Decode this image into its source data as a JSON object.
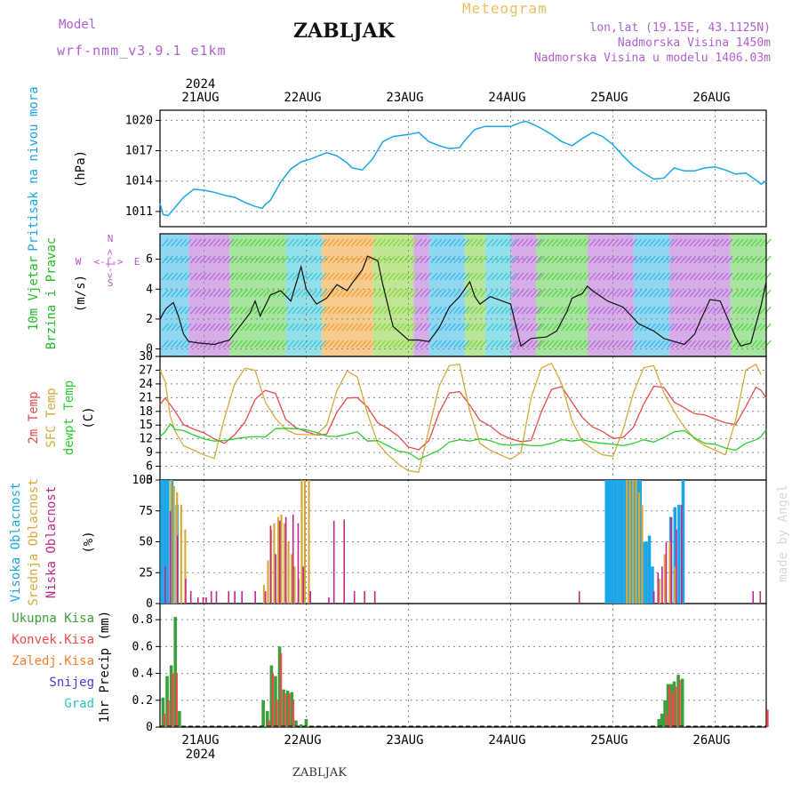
{
  "header": {
    "title": "ZABLJAK",
    "model_label": "Model",
    "model_name": "wrf-nmm_v3.9.1 e1km",
    "product": "Meteogram",
    "coords": "lon,lat (19.15E, 43.1125N)",
    "elevation": "Nadmorska Visina 1450m",
    "model_elevation": "Nadmorska Visina u modelu 1406.03m",
    "footer_station": "ZABLJAK",
    "watermark": "made by Angel"
  },
  "colors": {
    "pressure": "#1aa6e6",
    "wind_label": "#22bb22",
    "compass": "#bb55cc",
    "temp2m": "#e84c4c",
    "sfc_temp": "#d4aa3a",
    "dewpoint": "#2ecc2e",
    "high_cloud": "#1aa6e6",
    "mid_cloud": "#d4aa3a",
    "low_cloud": "#c4258e",
    "total_precip": "#3aa03a",
    "convective": "#e84c4c",
    "freezing": "#f08030",
    "snow": "#4040e0",
    "hail": "#30c0c0",
    "header_model": "#b060d0",
    "header_meteogram": "#e8c060"
  },
  "chart_data": [
    {
      "type": "line",
      "name": "pressure",
      "ylabel": "Pritisak na nivou mora",
      "yunit": "(hPa)",
      "ylim": [
        1009.5,
        1021
      ],
      "yticks": [
        1011,
        1014,
        1017,
        1020
      ],
      "grid": true,
      "x_days": [
        20.57,
        20.6,
        20.65,
        20.7,
        20.8,
        20.9,
        21.0,
        21.1,
        21.2,
        21.3,
        21.4,
        21.5,
        21.57,
        21.6,
        21.65,
        21.75,
        21.85,
        21.95,
        22.05,
        22.15,
        22.2,
        22.3,
        22.4,
        22.45,
        22.55,
        22.65,
        22.75,
        22.85,
        23.0,
        23.1,
        23.2,
        23.3,
        23.4,
        23.5,
        23.55,
        23.65,
        23.75,
        23.85,
        24.0,
        24.1,
        24.15,
        24.2,
        24.3,
        24.4,
        24.5,
        24.6,
        24.7,
        24.8,
        24.9,
        25.0,
        25.1,
        25.2,
        25.3,
        25.4,
        25.5,
        25.6,
        25.7,
        25.8,
        25.9,
        26.0,
        26.1,
        26.2,
        26.3,
        26.4,
        26.45,
        26.5
      ],
      "values": [
        1011.8,
        1010.7,
        1010.6,
        1011.2,
        1012.4,
        1013.2,
        1013.1,
        1012.9,
        1012.6,
        1012.4,
        1011.9,
        1011.5,
        1011.3,
        1011.7,
        1012.1,
        1013.9,
        1015.2,
        1015.9,
        1016.2,
        1016.6,
        1016.8,
        1016.5,
        1015.8,
        1015.3,
        1015.1,
        1016.2,
        1017.9,
        1018.4,
        1018.6,
        1018.8,
        1017.9,
        1017.5,
        1017.2,
        1017.3,
        1018.0,
        1019.1,
        1019.4,
        1019.4,
        1019.4,
        1019.8,
        1019.9,
        1019.7,
        1019.2,
        1018.6,
        1017.9,
        1017.5,
        1018.2,
        1018.8,
        1018.4,
        1017.6,
        1016.5,
        1015.5,
        1014.8,
        1014.2,
        1014.3,
        1015.3,
        1015.0,
        1015.0,
        1015.3,
        1015.4,
        1015.1,
        1014.7,
        1014.8,
        1014.1,
        1013.7,
        1014.0
      ]
    },
    {
      "type": "line",
      "name": "wind",
      "ylabel": "10m Vjetar",
      "ylabel2": "Brzina i Pravac",
      "yunit": "(m/s)",
      "ylim": [
        -0.5,
        7.7
      ],
      "yticks": [
        0,
        2,
        4,
        6
      ],
      "compass": {
        "n": "N",
        "s": "S",
        "e": "E",
        "w": "W",
        "arrow_h": "<-|->",
        "arrow_v": "<-|->"
      },
      "grid": true,
      "x_days": [
        20.57,
        20.63,
        20.7,
        20.75,
        20.8,
        20.85,
        20.95,
        21.1,
        21.25,
        21.35,
        21.45,
        21.5,
        21.55,
        21.65,
        21.75,
        21.85,
        21.95,
        22.0,
        22.1,
        22.2,
        22.3,
        22.4,
        22.45,
        22.55,
        22.6,
        22.7,
        22.75,
        22.85,
        23.0,
        23.1,
        23.2,
        23.3,
        23.4,
        23.5,
        23.6,
        23.65,
        23.7,
        23.8,
        24.0,
        24.1,
        24.2,
        24.35,
        24.45,
        24.55,
        24.6,
        24.7,
        24.75,
        24.8,
        24.95,
        25.1,
        25.25,
        25.4,
        25.5,
        25.6,
        25.7,
        25.8,
        25.85,
        25.95,
        26.05,
        26.2,
        26.25,
        26.35,
        26.45,
        26.5
      ],
      "values": [
        2.0,
        2.7,
        3.1,
        2.2,
        1.0,
        0.5,
        0.4,
        0.3,
        0.6,
        1.5,
        2.4,
        3.2,
        2.2,
        3.6,
        3.9,
        3.2,
        5.5,
        4.0,
        3.0,
        3.4,
        4.3,
        3.9,
        4.4,
        5.3,
        6.2,
        5.9,
        4.3,
        1.5,
        0.6,
        0.6,
        0.5,
        1.4,
        2.8,
        3.5,
        4.5,
        3.5,
        3.0,
        3.5,
        3.0,
        0.2,
        0.7,
        0.8,
        1.2,
        2.5,
        3.4,
        3.7,
        4.2,
        3.9,
        3.2,
        2.8,
        1.7,
        1.2,
        0.7,
        0.5,
        0.3,
        1.0,
        1.8,
        3.3,
        3.2,
        0.8,
        0.2,
        0.4,
        2.9,
        4.5
      ]
    },
    {
      "type": "line",
      "name": "temperature",
      "ylabel": "2m Temp",
      "ylabel2": "SFC Temp",
      "ylabel3": "dewpt Temp",
      "yunit": "(C)",
      "ylim": [
        3,
        30
      ],
      "yticks": [
        3,
        6,
        9,
        12,
        15,
        18,
        21,
        24,
        27,
        30
      ],
      "grid": true,
      "series": [
        {
          "name": "2m Temp",
          "x_days": [
            20.57,
            20.62,
            20.67,
            20.72,
            20.8,
            20.9,
            21.0,
            21.1,
            21.2,
            21.3,
            21.4,
            21.5,
            21.6,
            21.7,
            21.8,
            21.9,
            22.0,
            22.1,
            22.2,
            22.3,
            22.4,
            22.5,
            22.6,
            22.7,
            22.8,
            22.9,
            23.0,
            23.1,
            23.2,
            23.3,
            23.4,
            23.5,
            23.6,
            23.7,
            23.8,
            23.9,
            24.0,
            24.1,
            24.2,
            24.3,
            24.4,
            24.5,
            24.6,
            24.7,
            24.8,
            24.9,
            25.0,
            25.1,
            25.2,
            25.3,
            25.4,
            25.5,
            25.6,
            25.7,
            25.8,
            25.9,
            26.0,
            26.1,
            26.2,
            26.3,
            26.4,
            26.45,
            26.5
          ],
          "values": [
            19.5,
            20.9,
            19.5,
            17.9,
            15.1,
            14.1,
            13.3,
            12.0,
            11.0,
            12.9,
            15.6,
            20.6,
            22.6,
            21.9,
            16.2,
            14.4,
            13.6,
            12.8,
            13.0,
            17.8,
            20.9,
            21.0,
            18.9,
            15.5,
            14.2,
            12.6,
            10.2,
            9.6,
            11.6,
            17.7,
            22.0,
            22.3,
            19.4,
            16.0,
            14.8,
            13.0,
            12.0,
            11.4,
            11.6,
            17.9,
            22.8,
            23.4,
            20.0,
            16.7,
            14.6,
            13.6,
            12.1,
            12.3,
            14.5,
            19.5,
            23.5,
            23.2,
            20.0,
            18.8,
            17.5,
            17.2,
            16.3,
            15.5,
            15.1,
            19.0,
            23.3,
            22.6,
            20.9
          ]
        },
        {
          "name": "SFC Temp",
          "x_days": [
            20.57,
            20.62,
            20.67,
            20.72,
            20.8,
            20.9,
            21.0,
            21.1,
            21.2,
            21.3,
            21.4,
            21.5,
            21.6,
            21.7,
            21.8,
            21.9,
            22.0,
            22.1,
            22.2,
            22.3,
            22.4,
            22.5,
            22.6,
            22.7,
            22.8,
            22.9,
            23.0,
            23.1,
            23.2,
            23.3,
            23.4,
            23.5,
            23.6,
            23.7,
            23.8,
            23.9,
            24.0,
            24.1,
            24.2,
            24.3,
            24.4,
            24.5,
            24.6,
            24.7,
            24.8,
            24.9,
            25.0,
            25.1,
            25.2,
            25.3,
            25.4,
            25.5,
            25.6,
            25.7,
            25.8,
            25.9,
            26.0,
            26.1,
            26.2,
            26.3,
            26.4,
            26.45,
            26.5
          ],
          "values": [
            27.0,
            24.5,
            17.0,
            13.5,
            10.5,
            9.5,
            8.5,
            7.7,
            16.5,
            24.0,
            27.4,
            27.0,
            20.0,
            16.5,
            14.0,
            13.0,
            12.9,
            12.9,
            15.0,
            22.5,
            26.8,
            25.5,
            17.5,
            11.0,
            8.5,
            6.5,
            5.0,
            4.7,
            14.0,
            23.5,
            28.0,
            28.3,
            18.0,
            11.0,
            9.5,
            8.5,
            7.5,
            9.0,
            21.0,
            27.5,
            28.5,
            24.0,
            16.0,
            11.5,
            9.8,
            8.5,
            8.2,
            14.0,
            22.0,
            27.5,
            28.0,
            22.0,
            18.0,
            14.5,
            12.0,
            10.5,
            9.5,
            8.5,
            16.0,
            27.0,
            28.3,
            26.0,
            0
          ]
        },
        {
          "name": "dewpt Temp",
          "x_days": [
            20.57,
            20.62,
            20.67,
            20.72,
            20.8,
            20.9,
            21.0,
            21.1,
            21.2,
            21.3,
            21.4,
            21.5,
            21.6,
            21.7,
            21.8,
            21.9,
            22.0,
            22.1,
            22.2,
            22.3,
            22.4,
            22.5,
            22.6,
            22.7,
            22.8,
            22.9,
            23.0,
            23.1,
            23.2,
            23.3,
            23.4,
            23.5,
            23.6,
            23.7,
            23.8,
            23.9,
            24.0,
            24.1,
            24.2,
            24.3,
            24.4,
            24.5,
            24.6,
            24.7,
            24.8,
            24.9,
            25.0,
            25.1,
            25.2,
            25.3,
            25.4,
            25.5,
            25.6,
            25.7,
            25.8,
            25.9,
            26.0,
            26.1,
            26.2,
            26.3,
            26.4,
            26.45,
            26.5
          ],
          "values": [
            12.5,
            13.5,
            15.3,
            14.0,
            13.8,
            12.8,
            12.0,
            11.5,
            11.6,
            12.0,
            12.3,
            12.5,
            12.4,
            14.2,
            14.3,
            14.2,
            14.0,
            13.4,
            12.6,
            12.5,
            13.0,
            13.5,
            11.5,
            11.6,
            10.5,
            9.3,
            9.0,
            7.5,
            8.5,
            9.5,
            11.3,
            11.8,
            11.5,
            12.0,
            11.6,
            10.8,
            10.6,
            10.8,
            10.5,
            10.5,
            11.0,
            11.8,
            11.5,
            11.8,
            11.3,
            11.0,
            10.8,
            10.5,
            11.0,
            11.8,
            11.3,
            12.3,
            13.5,
            13.8,
            12.2,
            11.0,
            10.8,
            10.0,
            9.5,
            11.0,
            11.8,
            12.5,
            14.0
          ]
        }
      ]
    },
    {
      "type": "bar",
      "name": "cloudiness",
      "ylabel": "Visoka Oblacnost",
      "ylabel2": "Srednja Oblacnost",
      "ylabel3": "Niska Oblacnost",
      "yunit": "(%)",
      "ylim": [
        0,
        100
      ],
      "yticks": [
        0,
        25,
        50,
        75,
        100
      ],
      "grid": true,
      "series": [
        {
          "name": "Visoka Oblacnost",
          "x_days": [
            20.6,
            20.63,
            20.66,
            20.7,
            20.75,
            24.95,
            24.98,
            25.01,
            25.04,
            25.07,
            25.1,
            25.13,
            25.16,
            25.19,
            25.22,
            25.25,
            25.28,
            25.31,
            25.34,
            25.37,
            25.4,
            25.58,
            25.62,
            25.66,
            25.7
          ],
          "values": [
            100,
            100,
            100,
            100,
            80,
            100,
            100,
            100,
            100,
            100,
            100,
            100,
            100,
            100,
            100,
            100,
            100,
            50,
            50,
            55,
            30,
            70,
            78,
            80,
            100
          ]
        },
        {
          "name": "Srednja Oblacnost",
          "x_days": [
            20.67,
            20.7,
            20.73,
            20.77,
            20.81,
            21.58,
            21.62,
            21.65,
            21.68,
            21.72,
            21.75,
            21.78,
            21.82,
            21.85,
            21.88,
            21.92,
            21.95,
            21.98,
            22.02,
            25.13,
            25.16,
            25.19,
            25.22,
            25.25,
            25.28,
            25.45,
            25.5,
            25.55,
            25.6
          ],
          "values": [
            100,
            95,
            90,
            80,
            60,
            15,
            35,
            60,
            65,
            70,
            72,
            65,
            50,
            40,
            30,
            20,
            100,
            100,
            100,
            100,
            100,
            100,
            100,
            90,
            80,
            20,
            40,
            50,
            30
          ]
        },
        {
          "name": "Niska Oblacnost",
          "x_days": [
            20.6,
            20.65,
            20.72,
            20.8,
            20.85,
            20.92,
            20.97,
            21.0,
            21.05,
            21.1,
            21.22,
            21.28,
            21.35,
            21.48,
            21.58,
            21.63,
            21.68,
            21.72,
            21.78,
            21.85,
            21.9,
            21.95,
            22.02,
            22.2,
            22.25,
            22.35,
            22.45,
            22.55,
            22.65,
            24.65,
            25.38,
            25.42,
            25.46,
            25.5,
            25.55,
            25.6,
            25.65,
            26.35,
            26.42
          ],
          "values": [
            30,
            75,
            55,
            20,
            10,
            5,
            5,
            5,
            10,
            10,
            10,
            10,
            10,
            10,
            10,
            63,
            40,
            67,
            70,
            72,
            65,
            30,
            10,
            5,
            67,
            68,
            10,
            10,
            10,
            10,
            10,
            25,
            30,
            50,
            70,
            60,
            80,
            10,
            10
          ]
        }
      ]
    },
    {
      "type": "bar",
      "name": "precipitation",
      "ylabel": "1hr Precip",
      "yunit": "(mm)",
      "ylim": [
        0,
        0.92
      ],
      "yticks": [
        0,
        0.2,
        0.4,
        0.6,
        0.8
      ],
      "grid": true,
      "legend": [
        "Ukupna Kisa",
        "Konvek.Kisa",
        "Zaledj.Kisa",
        "Snijeg",
        "Grad"
      ],
      "series": [
        {
          "name": "Ukupna Kisa",
          "x_days": [
            20.6,
            20.64,
            20.68,
            20.72,
            20.76,
            21.58,
            21.62,
            21.66,
            21.7,
            21.74,
            21.78,
            21.82,
            21.86,
            21.9,
            21.95,
            22.0,
            25.45,
            25.48,
            25.51,
            25.54,
            25.57,
            25.6,
            25.64,
            25.68
          ],
          "values": [
            0.22,
            0.38,
            0.46,
            0.82,
            0.12,
            0.2,
            0.12,
            0.46,
            0.38,
            0.6,
            0.28,
            0.27,
            0.26,
            0.05,
            0.02,
            0.06,
            0.06,
            0.1,
            0.2,
            0.32,
            0.32,
            0.34,
            0.39,
            0.36
          ]
        },
        {
          "name": "Konvek.Kisa",
          "x_days": [
            20.6,
            20.64,
            20.68,
            20.72,
            21.62,
            21.66,
            21.7,
            21.74,
            21.78,
            21.82,
            21.86,
            25.51,
            25.54,
            25.57,
            25.6,
            25.64,
            26.5
          ],
          "values": [
            0.1,
            0.2,
            0.4,
            0.4,
            0.05,
            0.4,
            0.2,
            0.55,
            0.25,
            0.25,
            0.2,
            0.1,
            0.3,
            0.25,
            0.3,
            0.35,
            0.13
          ]
        }
      ],
      "xticks": [
        "21AUG",
        "22AUG",
        "23AUG",
        "24AUG",
        "25AUG",
        "26AUG"
      ],
      "xyear": "2024"
    }
  ]
}
